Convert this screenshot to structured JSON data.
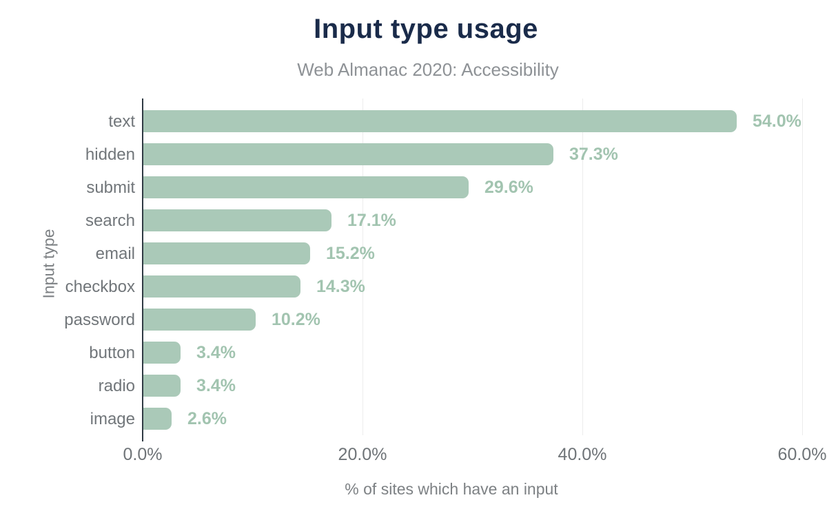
{
  "chart_data": {
    "type": "bar",
    "orientation": "horizontal",
    "title": "Input type usage",
    "subtitle": "Web Almanac 2020: Accessibility",
    "xlabel": "% of sites which have an input",
    "ylabel": "Input type",
    "categories": [
      "text",
      "hidden",
      "submit",
      "search",
      "email",
      "checkbox",
      "password",
      "button",
      "radio",
      "image"
    ],
    "values": [
      54.0,
      37.3,
      29.6,
      17.1,
      15.2,
      14.3,
      10.2,
      3.4,
      3.4,
      2.6
    ],
    "value_labels": [
      "54.0%",
      "37.3%",
      "29.6%",
      "17.1%",
      "15.2%",
      "14.3%",
      "10.2%",
      "3.4%",
      "3.4%",
      "2.6%"
    ],
    "xlim": [
      0,
      60
    ],
    "xticks": [
      0,
      20,
      40,
      60
    ],
    "xtick_labels": [
      "0.0%",
      "20.0%",
      "40.0%",
      "60.0%"
    ],
    "grid": "vertical-only",
    "legend": "none",
    "colors": {
      "bar": "#aac9b8",
      "value_label": "#a2c4b0",
      "title": "#1a2b4a",
      "subtitle": "#8e9296",
      "category_text": "#71767a",
      "tick_text": "#6f7478",
      "axis_title_text": "#7d8184",
      "axis_line": "#2f3a43",
      "gridline": "#ececec",
      "background": "#ffffff"
    }
  }
}
